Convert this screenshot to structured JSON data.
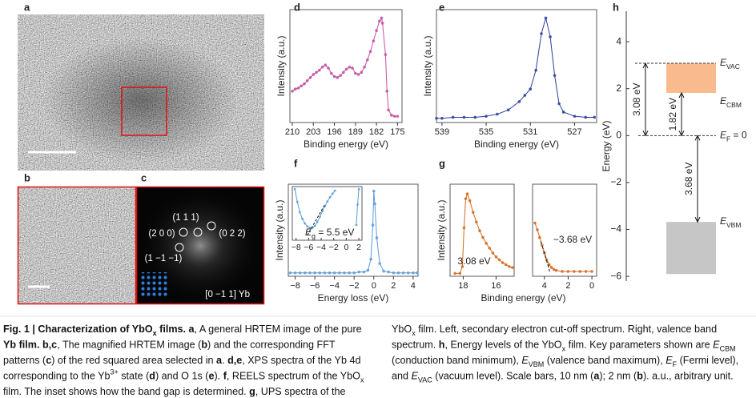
{
  "panels": {
    "letters": [
      "a",
      "b",
      "c",
      "d",
      "e",
      "f",
      "g",
      "h"
    ],
    "c_labels": [
      "(1 1 1)",
      "(2 0 0)",
      "(0 2 2)",
      "(1 −1 −1)",
      "[0 −1 1] Yb"
    ]
  },
  "chart_data": [
    {
      "type": "line",
      "x_label": "Binding energy (eV)",
      "y_label": "Intensity (a.u.)",
      "xlim": [
        210.8,
        173.5
      ],
      "ylim": [
        0,
        1.08
      ],
      "xticks": [
        210,
        203,
        196,
        189,
        182,
        175
      ],
      "series": [
        {
          "color": "#c2509f",
          "x": [
            210,
            209,
            208,
            207,
            206,
            205,
            204,
            203,
            202,
            201,
            200,
            199,
            198,
            197,
            196,
            195,
            194,
            193,
            192,
            191,
            190,
            189,
            188,
            187,
            186,
            185,
            184,
            183,
            182,
            181,
            180.3,
            180,
            179,
            178.5,
            178,
            177,
            176,
            175
          ],
          "values": [
            0.3,
            0.32,
            0.33,
            0.35,
            0.37,
            0.4,
            0.43,
            0.46,
            0.48,
            0.5,
            0.53,
            0.55,
            0.52,
            0.47,
            0.44,
            0.43,
            0.45,
            0.48,
            0.51,
            0.53,
            0.52,
            0.47,
            0.46,
            0.48,
            0.53,
            0.6,
            0.68,
            0.78,
            0.88,
            0.97,
            1.0,
            0.95,
            0.65,
            0.3,
            0.12,
            0.07,
            0.06,
            0.06
          ]
        }
      ]
    },
    {
      "type": "line",
      "x_label": "Binding energy (eV)",
      "y_label": "Intensity (a.u.)",
      "xlim": [
        539.5,
        525
      ],
      "ylim": [
        0,
        1.08
      ],
      "xticks": [
        539,
        535,
        531,
        527
      ],
      "series": [
        {
          "color": "#2a3f9a",
          "x": [
            539.5,
            539,
            538,
            537,
            536,
            535,
            534,
            533,
            532,
            531.5,
            531,
            530.5,
            530,
            529.6,
            529.2,
            528.8,
            528.4,
            528,
            527,
            526,
            525.2
          ],
          "values": [
            0.04,
            0.04,
            0.05,
            0.05,
            0.05,
            0.06,
            0.08,
            0.12,
            0.2,
            0.26,
            0.32,
            0.5,
            0.85,
            1.0,
            0.82,
            0.45,
            0.18,
            0.1,
            0.06,
            0.05,
            0.05
          ]
        }
      ]
    },
    {
      "type": "line",
      "x_label": "Energy loss (eV)",
      "y_label": "Intensity (a.u.)",
      "xlim": [
        -8.7,
        4.5
      ],
      "ylim": [
        0,
        1.08
      ],
      "xticks": [
        {
          "value": -8,
          "label": "−8"
        },
        {
          "value": -6,
          "label": "−6"
        },
        {
          "value": -4,
          "label": "−4"
        },
        {
          "value": -2,
          "label": "−2"
        },
        0,
        2,
        4
      ],
      "series": [
        {
          "color": "#5b9bd5",
          "x": [
            -8.5,
            -8,
            -7.5,
            -7,
            -6.5,
            -6,
            -5.5,
            -5,
            -4.5,
            -4,
            -3.5,
            -3,
            -2.5,
            -2,
            -1.5,
            -1,
            -0.6,
            -0.3,
            -0.1,
            0,
            0.1,
            0.3,
            0.6,
            1,
            1.5,
            2,
            2.5,
            3,
            3.5,
            4,
            4.4
          ],
          "values": [
            0.04,
            0.04,
            0.04,
            0.04,
            0.04,
            0.04,
            0.04,
            0.04,
            0.04,
            0.04,
            0.04,
            0.04,
            0.04,
            0.04,
            0.05,
            0.05,
            0.07,
            0.2,
            0.6,
            1.0,
            0.85,
            0.45,
            0.15,
            0.06,
            0.05,
            0.04,
            0.04,
            0.04,
            0.04,
            0.04,
            0.04
          ]
        }
      ],
      "inset": {
        "xlim": [
          -8.6,
          2.5
        ],
        "ylim": [
          0,
          1.05
        ],
        "xticks": [
          {
            "value": -8,
            "label": "−8"
          },
          {
            "value": -6,
            "label": "−6"
          },
          {
            "value": -4,
            "label": "−4"
          },
          {
            "value": -2,
            "label": "−2"
          },
          0,
          2
        ],
        "series": [
          {
            "color": "#5b9bd5",
            "x": [
              -8.2,
              -7.8,
              -7.4,
              -7,
              -6.6,
              -6.2,
              -5.8,
              -5.4,
              -5,
              -4.6,
              -4.2,
              -3.8,
              -3.4,
              -3,
              -2.6,
              -2.2,
              -1.8,
              null,
              1.6,
              1.8,
              2.0
            ],
            "values": [
              1.0,
              0.75,
              0.55,
              0.42,
              0.33,
              0.27,
              0.24,
              0.24,
              0.28,
              0.36,
              0.46,
              0.57,
              0.67,
              0.76,
              0.84,
              0.91,
              0.97,
              null,
              0.3,
              0.7,
              1.0
            ]
          }
        ],
        "fit": {
          "x": [
            -6.2,
            -3.4
          ],
          "values": [
            0.1,
            0.7
          ]
        },
        "label": {
          "main": "E",
          "sub": "g",
          "rest": " = 5.5 eV"
        }
      }
    },
    {
      "type": "line",
      "x_label": "Binding energy (eV)",
      "y_label": "Intensity (a.u.)",
      "xlim": [
        18.8,
        14.9
      ],
      "ylim": [
        0,
        0.95
      ],
      "xticks": [
        18,
        16
      ],
      "annotation": "3.08 eV",
      "series": [
        {
          "color": "#d4691f",
          "x": [
            18.5,
            18.2,
            18.05,
            17.95,
            17.85,
            17.75,
            17.6,
            17.4,
            17.2,
            17,
            16.8,
            16.6,
            16.4,
            16.2,
            16,
            15.8,
            15.6,
            15.4,
            15.2,
            15
          ],
          "values": [
            0.03,
            0.03,
            0.1,
            0.5,
            0.8,
            0.85,
            0.78,
            0.66,
            0.56,
            0.47,
            0.4,
            0.34,
            0.29,
            0.24,
            0.2,
            0.17,
            0.14,
            0.12,
            0.1,
            0.09
          ]
        }
      ]
    },
    {
      "type": "line",
      "xlim": [
        5,
        -0.4
      ],
      "ylim": [
        0,
        0.95
      ],
      "xticks": [
        4,
        2,
        0
      ],
      "annotation": "−3.68 eV",
      "series": [
        {
          "color": "#d4691f",
          "x": [
            4.8,
            4.6,
            4.4,
            4.2,
            4,
            3.8,
            3.6,
            3.4,
            3.2,
            3,
            2.5,
            2,
            1.5,
            1,
            0.5,
            0
          ],
          "values": [
            0.55,
            0.48,
            0.4,
            0.32,
            0.24,
            0.17,
            0.12,
            0.09,
            0.07,
            0.06,
            0.05,
            0.05,
            0.05,
            0.05,
            0.05,
            0.05
          ]
        }
      ],
      "fit": {
        "x": [
          4.3,
          3.55
        ],
        "values": [
          0.36,
          0.05
        ]
      }
    },
    {
      "type": "energy_levels",
      "y_label": "Energy (eV)",
      "ylim": [
        -6.2,
        5.3
      ],
      "yticks": [
        {
          "value": -6,
          "label": "−6"
        },
        {
          "value": -4,
          "label": "−4"
        },
        {
          "value": -2,
          "label": "−2"
        },
        0,
        2,
        4
      ],
      "bands": [
        {
          "top": 3.08,
          "bottom": 1.82,
          "color": "#f9bb8d"
        },
        {
          "top": -3.68,
          "bottom": -5.9,
          "color": "#c6c6c6"
        }
      ],
      "levels": [
        {
          "main": "E",
          "sub": "VAC",
          "value": 3.08
        },
        {
          "main": "E",
          "sub": "CBM",
          "value": 1.82
        },
        {
          "main": "E",
          "sub": "F",
          "suffix": " = 0",
          "value": 0
        },
        {
          "main": "E",
          "sub": "VBM",
          "value": -3.68
        }
      ],
      "gaps": [
        {
          "from": 3.08,
          "to": 0,
          "label": "3.08 eV"
        },
        {
          "from": 1.82,
          "to": 0,
          "label": "1.82 eV"
        },
        {
          "from": 0,
          "to": -3.68,
          "label": "3.68 eV"
        }
      ]
    }
  ],
  "caption": {
    "left": [
      [
        {
          "text": "Fig. 1 | Characterization of YbO",
          "style": "b"
        },
        {
          "text": "x",
          "style": "bsub"
        },
        {
          "text": " films. a",
          "style": "b"
        },
        {
          "text": ", A general HRTEM image of the pure"
        }
      ],
      [
        {
          "text": "Yb film. b,c",
          "style": "b"
        },
        {
          "text": ", The magnified HRTEM image ("
        },
        {
          "text": "b",
          "style": "b"
        },
        {
          "text": ") and the corresponding FFT"
        }
      ],
      [
        {
          "text": "patterns ("
        },
        {
          "text": "c",
          "style": "b"
        },
        {
          "text": ") of the red squared area selected in "
        },
        {
          "text": "a",
          "style": "b"
        },
        {
          "text": ". "
        },
        {
          "text": "d,e",
          "style": "b"
        },
        {
          "text": ", XPS spectra of the Yb 4d"
        }
      ],
      [
        {
          "text": "corresponding to the Yb"
        },
        {
          "text": "3+",
          "style": "sup"
        },
        {
          "text": " state ("
        },
        {
          "text": "d",
          "style": "b"
        },
        {
          "text": ") and O 1s ("
        },
        {
          "text": "e",
          "style": "b"
        },
        {
          "text": "). "
        },
        {
          "text": "f",
          "style": "b"
        },
        {
          "text": ", REELS spectrum of the YbO"
        },
        {
          "text": "x",
          "style": "sub"
        }
      ],
      [
        {
          "text": "film. The inset shows how the band gap is determined. "
        },
        {
          "text": "g",
          "style": "b"
        },
        {
          "text": ", UPS spectra of the"
        }
      ]
    ],
    "right": [
      [
        {
          "text": "YbO"
        },
        {
          "text": "x",
          "style": "sub"
        },
        {
          "text": " film. Left, secondary electron cut-off spectrum. Right, valence band"
        }
      ],
      [
        {
          "text": "spectrum. "
        },
        {
          "text": "h",
          "style": "b"
        },
        {
          "text": ", Energy levels of the YbO"
        },
        {
          "text": "x",
          "style": "sub"
        },
        {
          "text": " film. Key parameters shown are "
        },
        {
          "text": "E",
          "style": "i"
        },
        {
          "text": "CBM",
          "style": "sub"
        }
      ],
      [
        {
          "text": "(conduction band minimum), "
        },
        {
          "text": "E",
          "style": "i"
        },
        {
          "text": "VBM",
          "style": "sub"
        },
        {
          "text": " (valence band maximum), "
        },
        {
          "text": "E",
          "style": "i"
        },
        {
          "text": "F",
          "style": "sub"
        },
        {
          "text": " (Fermi level),"
        }
      ],
      [
        {
          "text": "and "
        },
        {
          "text": "E",
          "style": "i"
        },
        {
          "text": "VAC",
          "style": "sub"
        },
        {
          "text": " (vacuum level). Scale bars, 10 nm ("
        },
        {
          "text": "a",
          "style": "b"
        },
        {
          "text": "); 2 nm ("
        },
        {
          "text": "b",
          "style": "b"
        },
        {
          "text": "). a.u., arbitrary unit."
        }
      ]
    ]
  }
}
